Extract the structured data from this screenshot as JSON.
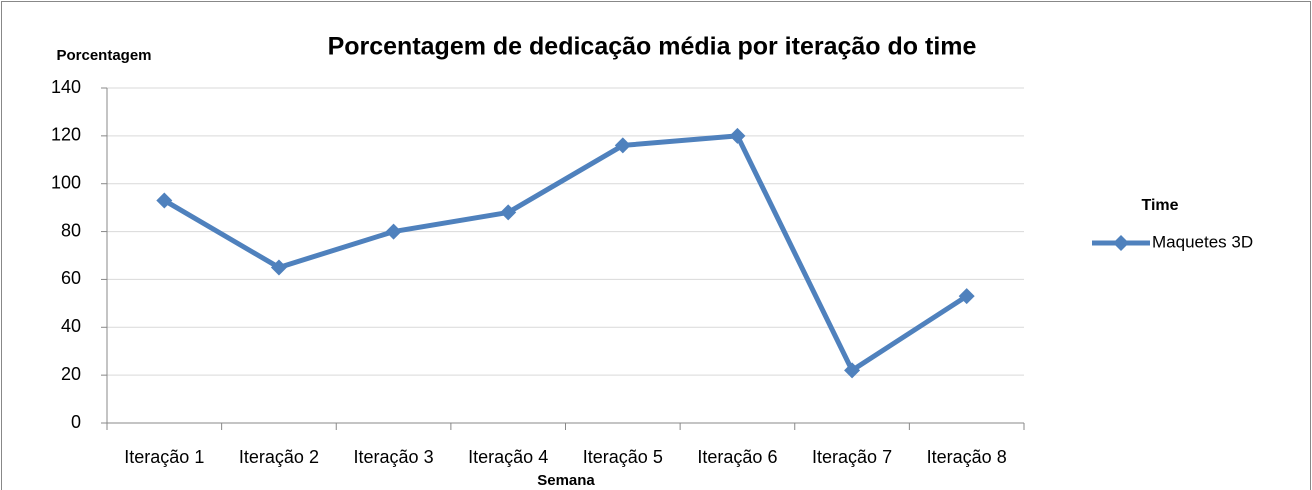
{
  "chart_data": {
    "type": "line",
    "title": "Porcentagem de dedicação média por iteração do time",
    "y_label": "Porcentagem",
    "x_label": "Semana",
    "legend_title": "Time",
    "categories": [
      "Iteração 1",
      "Iteração 2",
      "Iteração 3",
      "Iteração 4",
      "Iteração 5",
      "Iteração 6",
      "Iteração 7",
      "Iteração 8"
    ],
    "series": [
      {
        "name": "Maquetes 3D",
        "color": "#4f81bd",
        "values": [
          93,
          65,
          80,
          88,
          116,
          120,
          22,
          53
        ]
      }
    ],
    "ylim": [
      0,
      140
    ],
    "yticks": [
      0,
      20,
      40,
      60,
      80,
      100,
      120,
      140
    ],
    "grid": true,
    "legend": "right"
  }
}
